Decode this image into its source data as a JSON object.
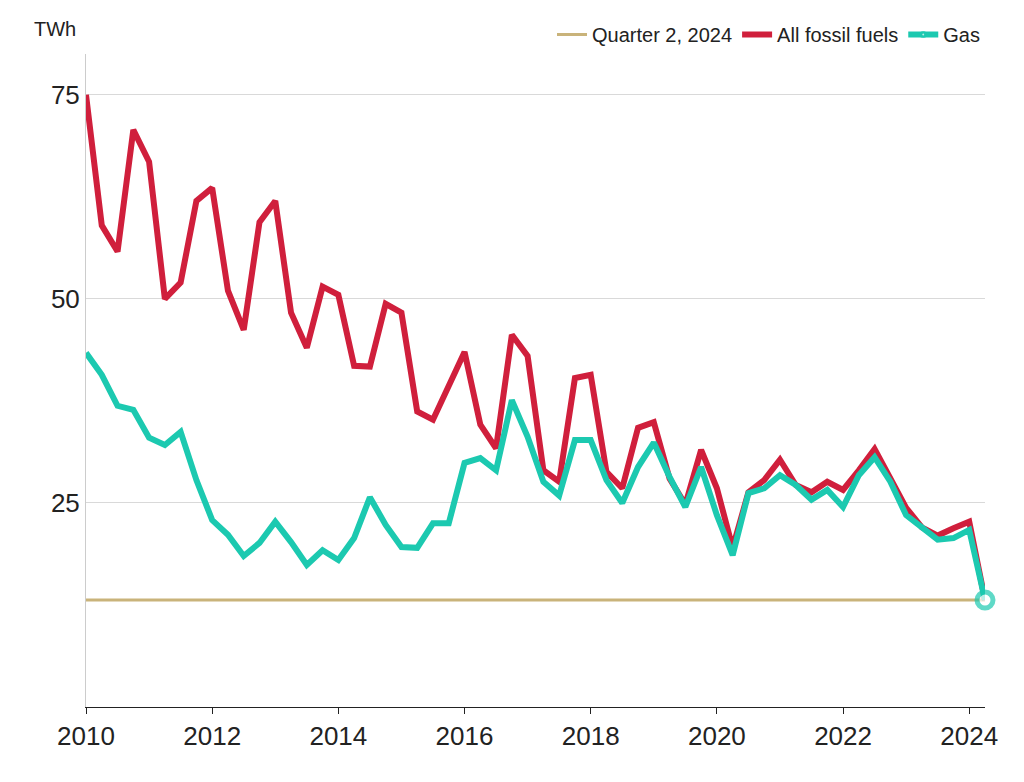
{
  "chart_data": {
    "type": "line",
    "ylabel": "TWh",
    "x": [
      2010,
      2010.25,
      2010.5,
      2010.75,
      2011,
      2011.25,
      2011.5,
      2011.75,
      2012,
      2012.25,
      2012.5,
      2012.75,
      2013,
      2013.25,
      2013.5,
      2013.75,
      2014,
      2014.25,
      2014.5,
      2014.75,
      2015,
      2015.25,
      2015.5,
      2015.75,
      2016,
      2016.25,
      2016.5,
      2016.75,
      2017,
      2017.25,
      2017.5,
      2017.75,
      2018,
      2018.25,
      2018.5,
      2018.75,
      2019,
      2019.25,
      2019.5,
      2019.75,
      2020,
      2020.25,
      2020.5,
      2020.75,
      2021,
      2021.25,
      2021.5,
      2021.75,
      2022,
      2022.25,
      2022.5,
      2022.75,
      2023,
      2023.25,
      2023.5,
      2023.75,
      2024,
      2024.25
    ],
    "series": [
      {
        "name": "Quarter 2, 2024",
        "color": "#c9b37a",
        "x": [
          2010,
          2024.25
        ],
        "values": [
          13.1,
          13.1
        ]
      },
      {
        "name": "All fossil fuels",
        "color": "#d01f3c",
        "values": [
          75,
          59,
          55.8,
          70.7,
          66.8,
          50,
          52,
          62,
          63.6,
          51,
          46.2,
          59.4,
          62,
          48.3,
          44,
          51.5,
          50.5,
          41.8,
          41.7,
          49.4,
          48.3,
          36.2,
          35.2,
          39.5,
          43.5,
          34.6,
          31.7,
          45.6,
          43,
          29,
          27.6,
          40.3,
          40.7,
          28.8,
          26.8,
          34.2,
          34.9,
          28,
          24.8,
          31.5,
          26.8,
          19.5,
          26.3,
          27.8,
          30.3,
          27.2,
          26.3,
          27.6,
          26.6,
          29,
          31.6,
          28,
          24.4,
          22,
          21,
          21.9,
          22.7,
          13.1
        ]
      },
      {
        "name": "Gas",
        "color": "#1cc9b0",
        "marker": "end-circle",
        "values": [
          43.4,
          40.7,
          36.9,
          36.4,
          33,
          32.1,
          33.7,
          27.8,
          22.9,
          21.1,
          18.5,
          20.1,
          22.7,
          20.2,
          17.4,
          19.2,
          18,
          20.7,
          25.7,
          22.3,
          19.6,
          19.5,
          22.5,
          22.5,
          29.9,
          30.5,
          29,
          37.6,
          33.1,
          27.6,
          25.9,
          32.7,
          32.7,
          27.8,
          25,
          29.4,
          32.4,
          28.2,
          24.5,
          29.4,
          23.5,
          18.6,
          26.2,
          26.8,
          28.4,
          27.2,
          25.4,
          26.6,
          24.5,
          28.4,
          30.6,
          27.6,
          23.5,
          22,
          20.5,
          20.7,
          21.7,
          13.1
        ]
      }
    ],
    "xlim": [
      2010,
      2024.25
    ],
    "xticks": [
      2010,
      2012,
      2014,
      2016,
      2018,
      2020,
      2022,
      2024
    ],
    "ylim": [
      0,
      80
    ],
    "yticks": [
      25,
      50,
      75
    ],
    "grid": true,
    "legend": "top"
  }
}
